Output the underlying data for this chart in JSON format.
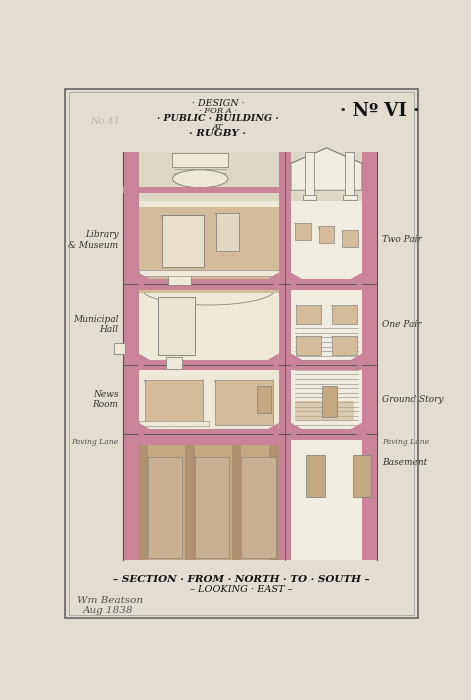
{
  "bg_color": "#e2ddd0",
  "paper_color": "#ddd8c5",
  "pink": "#c9849a",
  "tan": "#c4a882",
  "tan_light": "#d4bc9a",
  "tan_dark": "#b09070",
  "cream": "#ede8d8",
  "white_room": "#f0ede0",
  "line_color": "#888880",
  "dark_line": "#555550",
  "title1": "· DESIGN ·",
  "title2": "· FOR A ·",
  "title3": "· PUBLIC · BUILDING ·",
  "title4": "AT",
  "title5": "· RUGBY ·",
  "num_label": "· Nº VI ·",
  "pencil_num": "No.41",
  "bot_label1": "– SECTION · FROM · NORTH · TO · SOUTH –",
  "bot_label2": "– LOOKING · EAST –",
  "sig_line1": "Wm Beatson",
  "sig_line2": "Aug 1838",
  "lbl_library": "Library\n& Museum",
  "lbl_municipal": "Municipal\nHall",
  "lbl_news": "News\nRoom",
  "lbl_paving": "Paving Lane",
  "lbl_two": "Two Pair",
  "lbl_one": "One Pair",
  "lbl_ground": "Ground Story",
  "lbl_basement": "Basement",
  "lbl_paving2": "Paving Lane",
  "figsize": [
    4.71,
    7.0
  ],
  "dpi": 100
}
